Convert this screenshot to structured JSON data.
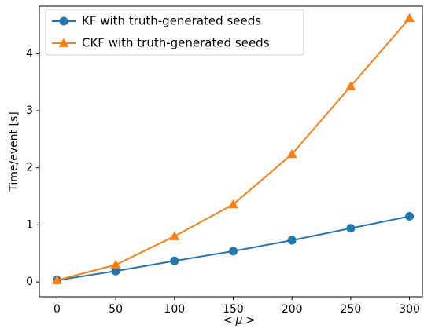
{
  "chart_data": {
    "type": "line",
    "x_label": "< μ >",
    "y_label": "Time/event [s]",
    "x": [
      0,
      50,
      100,
      150,
      200,
      250,
      300
    ],
    "series": [
      {
        "name": "KF with truth-generated seeds",
        "color": "#1f77b4",
        "marker": "circle",
        "values": [
          0.03,
          0.19,
          0.37,
          0.54,
          0.73,
          0.94,
          1.15
        ]
      },
      {
        "name": "CKF with truth-generated seeds",
        "color": "#ff7f0e",
        "marker": "triangle",
        "values": [
          0.03,
          0.3,
          0.8,
          1.36,
          2.24,
          3.43,
          4.62
        ]
      }
    ],
    "xlim": [
      -15,
      311
    ],
    "ylim": [
      -0.26,
      4.83
    ],
    "xticks": [
      0,
      50,
      100,
      150,
      200,
      250,
      300
    ],
    "yticks": [
      0,
      1,
      2,
      3,
      4
    ],
    "grid": false,
    "legend": "upper left"
  }
}
